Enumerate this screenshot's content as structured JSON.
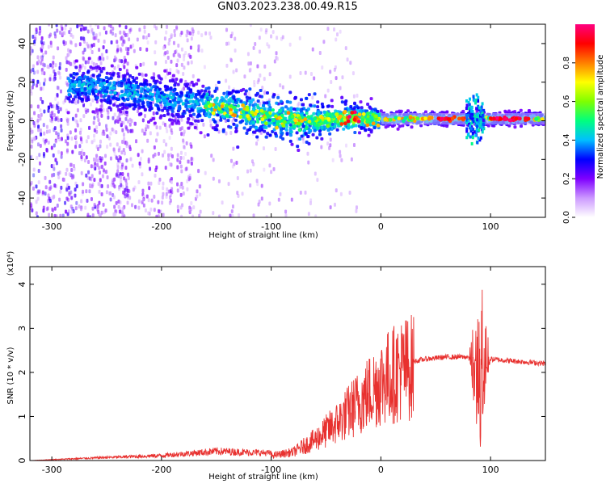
{
  "title": "GN03.2023.238.00.49.R15",
  "chart_data": [
    {
      "type": "heatmap",
      "xlabel": "Height of straight line (km)",
      "ylabel": "Frequency (Hz)",
      "xlim": [
        -320,
        150
      ],
      "ylim": [
        -50,
        50
      ],
      "xticks": [
        -300,
        -200,
        -100,
        0,
        100
      ],
      "yticks": [
        -40,
        -20,
        0,
        20,
        40
      ],
      "colorbar": {
        "label": "Normalized spectral amplitude",
        "range": [
          0,
          1
        ],
        "ticks": [
          0.0,
          0.2,
          0.4,
          0.6,
          0.8
        ],
        "colormap": [
          "#ffffff",
          "#cc99ff",
          "#7f00ff",
          "#0000ff",
          "#00bfff",
          "#00ff7f",
          "#7fff00",
          "#ffff00",
          "#ff7f00",
          "#ff0000",
          "#ff0080"
        ]
      },
      "ridge": [
        {
          "x": -280,
          "y": 18
        },
        {
          "x": -250,
          "y": 17
        },
        {
          "x": -220,
          "y": 14
        },
        {
          "x": -180,
          "y": 10
        },
        {
          "x": -150,
          "y": 7
        },
        {
          "x": -120,
          "y": 4
        },
        {
          "x": -100,
          "y": 2
        },
        {
          "x": -80,
          "y": 0
        },
        {
          "x": -60,
          "y": 0
        },
        {
          "x": -40,
          "y": 1
        },
        {
          "x": -20,
          "y": 1
        },
        {
          "x": 0,
          "y": 1
        },
        {
          "x": 50,
          "y": 1
        },
        {
          "x": 100,
          "y": 1
        },
        {
          "x": 150,
          "y": 1
        }
      ]
    },
    {
      "type": "line",
      "xlabel": "Height of straight line (km)",
      "ylabel": "SNR (10 * v/v)",
      "scale_note": "(x10⁴)",
      "xlim": [
        -320,
        150
      ],
      "ylim": [
        0,
        4.4
      ],
      "xticks": [
        -300,
        -200,
        -100,
        0,
        100
      ],
      "yticks": [
        0,
        1,
        2,
        3,
        4
      ],
      "color": "#e8312f",
      "envelope": [
        {
          "x": -320,
          "y": 0.0
        },
        {
          "x": -250,
          "y": 0.05
        },
        {
          "x": -200,
          "y": 0.08
        },
        {
          "x": -150,
          "y": 0.15
        },
        {
          "x": -100,
          "y": 0.12
        },
        {
          "x": -80,
          "y": 0.2
        },
        {
          "x": -60,
          "y": 0.5
        },
        {
          "x": -40,
          "y": 0.9
        },
        {
          "x": -20,
          "y": 1.4
        },
        {
          "x": 0,
          "y": 1.9
        },
        {
          "x": 20,
          "y": 2.2
        },
        {
          "x": 40,
          "y": 2.3
        },
        {
          "x": 60,
          "y": 2.35
        },
        {
          "x": 80,
          "y": 2.35
        },
        {
          "x": 100,
          "y": 2.3
        },
        {
          "x": 150,
          "y": 2.2
        }
      ],
      "spike": {
        "x": [
          80,
          100
        ],
        "y_max": 4.3
      }
    }
  ]
}
